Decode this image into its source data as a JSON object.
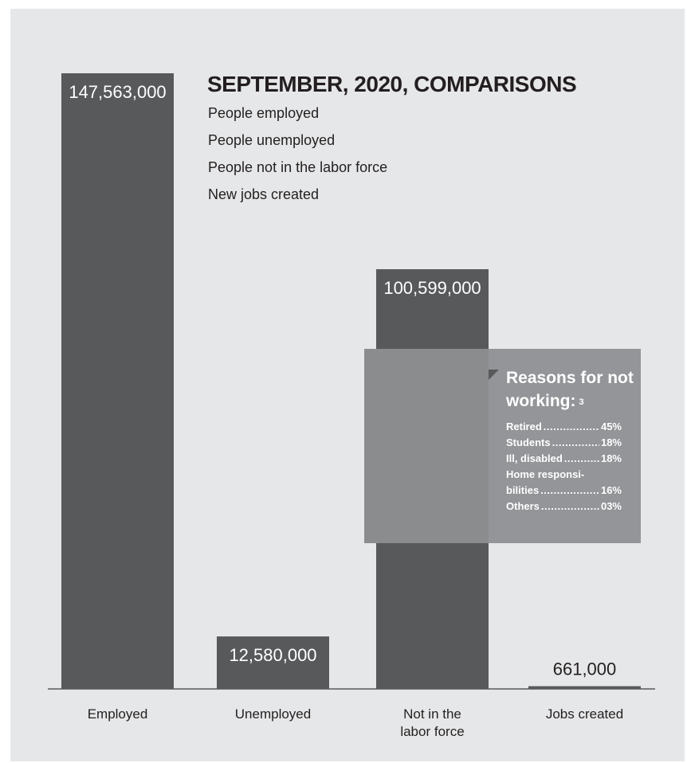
{
  "chart_data": {
    "type": "bar",
    "title": "SEPTEMBER, 2020, COMPARISONS",
    "categories": [
      "Employed",
      "Unemployed",
      "Not in the labor force",
      "Jobs created"
    ],
    "category_labels": [
      [
        "Employed"
      ],
      [
        "Unemployed"
      ],
      [
        "Not in the",
        "labor force"
      ],
      [
        "Jobs created"
      ]
    ],
    "values": [
      147563000,
      12580000,
      100599000,
      661000
    ],
    "value_labels": [
      "147,563,000",
      "12,580,000",
      "100,599,000",
      "661,000"
    ],
    "ylim": [
      0,
      147563000
    ],
    "grid": false,
    "legend_position": "top-right",
    "legend_entries": [
      "People employed",
      "People unemployed",
      "People not in the labor force",
      "New jobs created"
    ],
    "colors": {
      "bar": "#58595b",
      "baseline": "#58595b",
      "background": "#e6e7e8",
      "callout": "#939598",
      "callout_band": "#8b8c8e",
      "text": "#231f20"
    }
  },
  "reasons": {
    "title": "Reasons for not working:",
    "footnote": "3",
    "items": [
      {
        "label": "Retired",
        "value": "45%"
      },
      {
        "label": "Students",
        "value": "18%"
      },
      {
        "label": "Ill, disabled",
        "value": "18%"
      },
      {
        "label": "Home responsi-",
        "value": ""
      },
      {
        "label": "bilities",
        "value": "16%"
      },
      {
        "label": "Others",
        "value": "03%"
      }
    ]
  }
}
